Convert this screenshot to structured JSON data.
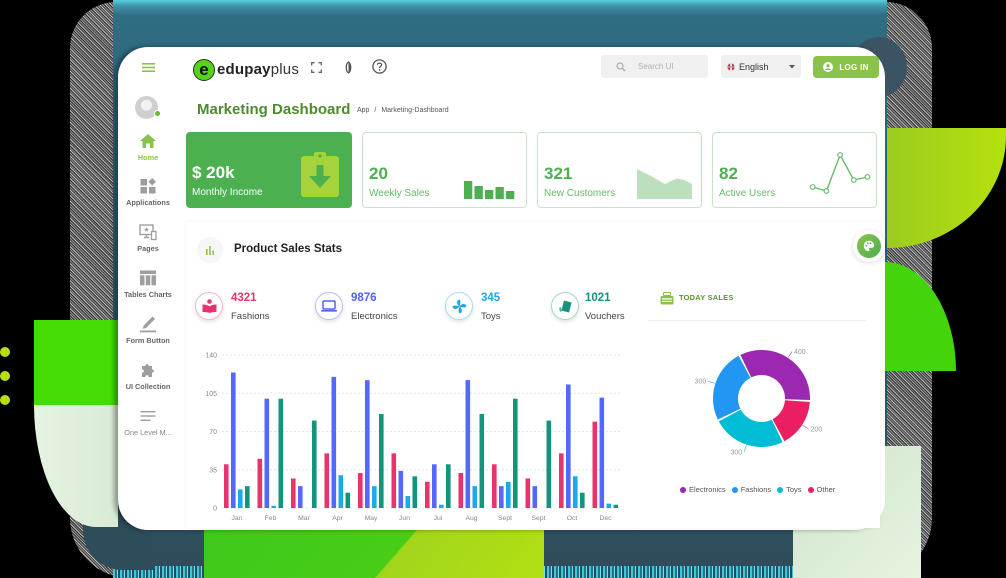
{
  "header": {
    "menu_icon": "hamburger-icon",
    "brand": {
      "logo_letter": "e",
      "name_bold": "edupay",
      "name_light": "plus"
    },
    "toolbar_icons": [
      "fullscreen-icon",
      "contrast-icon",
      "help-icon"
    ],
    "search": {
      "placeholder": "Search UI",
      "value": ""
    },
    "language": {
      "selected": "English"
    },
    "login_label": "LOG IN"
  },
  "sidebar": {
    "items": [
      {
        "label": "Home",
        "icon": "home-icon",
        "active": true
      },
      {
        "label": "Applications",
        "icon": "applications-icon"
      },
      {
        "label": "Pages",
        "icon": "pages-icon"
      },
      {
        "label": "Tables Charts",
        "icon": "table-icon"
      },
      {
        "label": "Form Button",
        "icon": "pencil-icon"
      },
      {
        "label": "UI Collection",
        "icon": "puzzle-icon"
      },
      {
        "label": "One Level M...",
        "icon": "menu-lines-icon"
      }
    ]
  },
  "page": {
    "title": "Marketing Dashboard",
    "breadcrumb": {
      "root": "App",
      "separator": "/",
      "current": "Marketing-Dashboard"
    }
  },
  "cards": [
    {
      "value": "$ 20k",
      "label": "Monthly Income",
      "icon": "clipboard-download-icon"
    },
    {
      "value": "20",
      "label": "Weekly Sales"
    },
    {
      "value": "321",
      "label": "New Customers"
    },
    {
      "value": "82",
      "label": "Active Users"
    }
  ],
  "mini_charts": {
    "weekly_sales_bars": [
      18,
      13,
      9,
      12,
      8
    ],
    "new_customers_area": {
      "x": [
        0,
        14,
        28,
        34,
        40,
        47,
        55
      ],
      "y": [
        30,
        23,
        15,
        18,
        20.5,
        19,
        15
      ]
    },
    "active_users_line": [
      10,
      6,
      42,
      17,
      20
    ],
    "color": "#4caf50",
    "area_color": "#a5d6a7"
  },
  "product_sales": {
    "title": "Product Sales Stats",
    "stats": [
      {
        "value": "4321",
        "label": "Fashions",
        "color": "#e8336b",
        "icon": "book-reader-icon"
      },
      {
        "value": "9876",
        "label": "Electronics",
        "color": "#4f60f5",
        "icon": "laptop-icon"
      },
      {
        "value": "345",
        "label": "Toys",
        "color": "#1aa8ec",
        "icon": "pinwheel-icon"
      },
      {
        "value": "1021",
        "label": "Vouchers",
        "color": "#12937a",
        "icon": "voucher-icon"
      }
    ]
  },
  "today_sales": {
    "title": "TODAY SALES"
  },
  "chart_data": [
    {
      "type": "bar",
      "title": "Product Sales Stats",
      "categories": [
        "Jan",
        "Feb",
        "Mar",
        "Apr",
        "May",
        "Jun",
        "Jul",
        "Aug",
        "Sept",
        "Sept",
        "Oct",
        "Dec"
      ],
      "series": [
        {
          "name": "Fashions",
          "color": "#e8336b",
          "values": [
            40,
            45,
            27,
            50,
            32,
            50,
            24,
            32,
            40,
            27,
            50,
            79
          ]
        },
        {
          "name": "Electronics",
          "color": "#5468ff",
          "values": [
            124,
            100,
            20,
            120,
            117,
            34,
            40,
            117,
            20,
            20,
            113,
            101
          ]
        },
        {
          "name": "Toys",
          "color": "#1aa8ef",
          "values": [
            17,
            2,
            0,
            30,
            20,
            11,
            3,
            20,
            24,
            0,
            29,
            4
          ]
        },
        {
          "name": "Vouchers",
          "color": "#12957a",
          "values": [
            20,
            100,
            80,
            14,
            86,
            29,
            40,
            86,
            100,
            80,
            14,
            3
          ]
        }
      ],
      "yticks": [
        0,
        35,
        70,
        105,
        140
      ],
      "ylim": [
        0,
        140
      ],
      "xlabel": "",
      "ylabel": "",
      "grid": true,
      "legend": "none"
    },
    {
      "type": "pie",
      "variant": "donut",
      "title": "TODAY SALES",
      "categories": [
        "Electronics",
        "Fashions",
        "Toys",
        "Other"
      ],
      "values": [
        400,
        300,
        300,
        200
      ],
      "colors": [
        "#9c27b0",
        "#2196f3",
        "#00bcd4",
        "#e91e63"
      ],
      "data_labels": [
        "400",
        "300",
        "300",
        "200"
      ],
      "legend_position": "bottom"
    }
  ]
}
